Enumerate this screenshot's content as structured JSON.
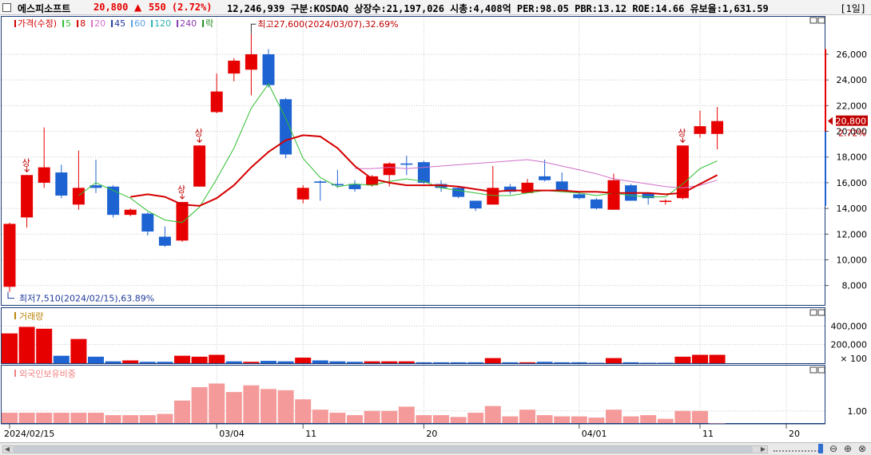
{
  "header": {
    "stock_name": "에스피소프트",
    "price": "20,800",
    "change_arrow": "▲",
    "change": "550 (2.72%)",
    "info": "12,246,939  구분:KOSDAQ  상장수:21,197,026  시총:4,408억  PER:98.05  PBR:13.12  ROE:14.66  유보율:1,631.59",
    "period": "[1일]"
  },
  "colors": {
    "up": "#e60000",
    "down": "#1e63d2",
    "ma5": "#2fbf2f",
    "ma20": "#d40000",
    "ma60": "#d070c8",
    "vol_up": "#e60000",
    "vol_down": "#1e63d2",
    "foreign": "#f59a9a"
  },
  "icons": [
    "restore-icon",
    "maximize-icon",
    "zoom-out-icon",
    "zoom-in-icon",
    "zoom-reset-icon"
  ],
  "price_panel": {
    "legend": [
      {
        "label": "가격(수정)",
        "color": "#d40000"
      },
      {
        "label": "5",
        "color": "#2fbf2f"
      },
      {
        "label": "8",
        "color": "#d40000"
      },
      {
        "label": "20",
        "color": "#d070c8"
      },
      {
        "label": "45",
        "color": "#1e3a9a"
      },
      {
        "label": "60",
        "color": "#5aa0e0"
      },
      {
        "label": "120",
        "color": "#2ab0b0"
      },
      {
        "label": "240",
        "color": "#8a3ab0"
      },
      {
        "label": "락",
        "color": "#228b22"
      }
    ],
    "high_note": "최고27,600(2024/03/07),32.69%",
    "low_note": "최저7,510(2024/02/15),63.89%",
    "limit_up_label": "상",
    "current_price_tag": "20,800",
    "current_pct_tag": "2.72%",
    "y_ticks": [
      "26,000",
      "24,000",
      "22,000",
      "20,000",
      "18,000",
      "16,000",
      "14,000",
      "12,000",
      "10,000",
      "8,000"
    ]
  },
  "volume_panel": {
    "title": "거래량",
    "y_ticks": [
      "400,000",
      "200,000",
      "× 100"
    ]
  },
  "foreign_panel": {
    "title": "외국인보유비중",
    "y_ticks": [
      "1.00"
    ]
  },
  "x_axis": {
    "labels": [
      "2024/02/15",
      "03/04",
      "11",
      "20",
      "04/01",
      "11",
      "20"
    ]
  },
  "chart_data": {
    "type": "candlestick",
    "dates_note": "daily candles from 2024/02/15",
    "candles": [
      {
        "o": 7900,
        "c": 12800,
        "h": 12900,
        "l": 7510
      },
      {
        "o": 13300,
        "c": 16600,
        "h": 16600,
        "l": 12500
      },
      {
        "o": 16000,
        "c": 17200,
        "h": 20300,
        "l": 15600
      },
      {
        "o": 16800,
        "c": 15000,
        "h": 17400,
        "l": 14800
      },
      {
        "o": 14300,
        "c": 15600,
        "h": 18500,
        "l": 13900
      },
      {
        "o": 15800,
        "c": 15600,
        "h": 17800,
        "l": 15200
      },
      {
        "o": 15700,
        "c": 13500,
        "h": 15800,
        "l": 13300
      },
      {
        "o": 13500,
        "c": 13900,
        "h": 14000,
        "l": 13400
      },
      {
        "o": 13600,
        "c": 12200,
        "h": 13700,
        "l": 11900
      },
      {
        "o": 11800,
        "c": 11100,
        "h": 12600,
        "l": 11000
      },
      {
        "o": 11500,
        "c": 14500,
        "h": 14500,
        "l": 11400
      },
      {
        "o": 15700,
        "c": 18900,
        "h": 18900,
        "l": 15700
      },
      {
        "o": 21500,
        "c": 23100,
        "h": 24500,
        "l": 21400
      },
      {
        "o": 24500,
        "c": 25500,
        "h": 25700,
        "l": 23900
      },
      {
        "o": 24800,
        "c": 26000,
        "h": 27600,
        "l": 22800
      },
      {
        "o": 26000,
        "c": 23600,
        "h": 26400,
        "l": 23400
      },
      {
        "o": 22500,
        "c": 18200,
        "h": 22600,
        "l": 17900
      },
      {
        "o": 14700,
        "c": 15600,
        "h": 15800,
        "l": 14400
      },
      {
        "o": 16100,
        "c": 16000,
        "h": 16200,
        "l": 14600
      },
      {
        "o": 15900,
        "c": 15800,
        "h": 17000,
        "l": 15600
      },
      {
        "o": 15900,
        "c": 15500,
        "h": 16200,
        "l": 15300
      },
      {
        "o": 15800,
        "c": 16500,
        "h": 16600,
        "l": 15700
      },
      {
        "o": 16600,
        "c": 17500,
        "h": 17600,
        "l": 15700
      },
      {
        "o": 17500,
        "c": 17400,
        "h": 18100,
        "l": 16600
      },
      {
        "o": 17600,
        "c": 16000,
        "h": 17700,
        "l": 15900
      },
      {
        "o": 15900,
        "c": 15600,
        "h": 16200,
        "l": 15300
      },
      {
        "o": 15600,
        "c": 14900,
        "h": 15700,
        "l": 14800
      },
      {
        "o": 14600,
        "c": 14000,
        "h": 14600,
        "l": 13800
      },
      {
        "o": 14300,
        "c": 15600,
        "h": 17300,
        "l": 14300
      },
      {
        "o": 15700,
        "c": 15300,
        "h": 15900,
        "l": 15100
      },
      {
        "o": 15200,
        "c": 16000,
        "h": 16300,
        "l": 15200
      },
      {
        "o": 16500,
        "c": 16200,
        "h": 17800,
        "l": 16100
      },
      {
        "o": 16100,
        "c": 15400,
        "h": 16800,
        "l": 15300
      },
      {
        "o": 15100,
        "c": 14800,
        "h": 15300,
        "l": 14700
      },
      {
        "o": 14700,
        "c": 14000,
        "h": 14800,
        "l": 13900
      },
      {
        "o": 13900,
        "c": 16200,
        "h": 16700,
        "l": 13900
      },
      {
        "o": 15800,
        "c": 14600,
        "h": 15900,
        "l": 14600
      },
      {
        "o": 15200,
        "c": 14800,
        "h": 15200,
        "l": 14300
      },
      {
        "o": 14600,
        "c": 14600,
        "h": 14700,
        "l": 14300
      },
      {
        "o": 14800,
        "c": 18900,
        "h": 18900,
        "l": 14700
      },
      {
        "o": 19800,
        "c": 20400,
        "h": 21600,
        "l": 19500
      },
      {
        "o": 19800,
        "c": 20800,
        "h": 21900,
        "l": 18600
      }
    ],
    "ma5": [
      null,
      null,
      null,
      null,
      15000,
      16000,
      15400,
      14800,
      13800,
      13100,
      12900,
      14100,
      16300,
      18700,
      21800,
      23700,
      21000,
      17900,
      16400,
      15700,
      15900,
      15800,
      16100,
      16300,
      16100,
      15600,
      15400,
      15200,
      15000,
      15000,
      15200,
      15400,
      15300,
      15200,
      15000,
      15200,
      15000,
      14900,
      14900,
      15900,
      17100,
      17700
    ],
    "ma8": [
      null,
      null,
      null,
      null,
      null,
      null,
      null,
      14900,
      15100,
      14900,
      14300,
      14200,
      14800,
      15800,
      17200,
      18400,
      19300,
      19700,
      19600,
      18700,
      17300,
      16300,
      16000,
      15800,
      15800,
      15800,
      15700,
      15500,
      15300,
      15400,
      15400,
      15400,
      15400,
      15300,
      15300,
      15200,
      15200,
      15200,
      15100,
      15200,
      15900,
      16600
    ],
    "ma20": [
      null,
      null,
      null,
      null,
      null,
      null,
      null,
      null,
      null,
      null,
      null,
      null,
      null,
      null,
      null,
      null,
      null,
      null,
      null,
      null,
      17100,
      17100,
      17200,
      17100,
      17200,
      17300,
      17400,
      17500,
      17600,
      17700,
      17800,
      17600,
      17300,
      17000,
      16700,
      16300,
      16100,
      15900,
      15700,
      15600,
      15800,
      16200
    ],
    "volume": [
      320000,
      390000,
      370000,
      80000,
      260000,
      70000,
      20000,
      30000,
      15000,
      15000,
      80000,
      70000,
      90000,
      20000,
      15000,
      25000,
      20000,
      60000,
      30000,
      20000,
      15000,
      20000,
      20000,
      20000,
      10000,
      10000,
      10000,
      10000,
      55000,
      10000,
      10000,
      15000,
      10000,
      10000,
      5000,
      55000,
      10000,
      5000,
      5000,
      70000,
      90000,
      90000
    ],
    "volume_up": [
      true,
      true,
      true,
      false,
      true,
      false,
      false,
      true,
      false,
      false,
      true,
      true,
      true,
      false,
      true,
      false,
      false,
      true,
      false,
      false,
      false,
      true,
      true,
      true,
      false,
      false,
      false,
      false,
      true,
      false,
      true,
      false,
      false,
      false,
      false,
      true,
      false,
      false,
      false,
      true,
      true,
      true
    ],
    "foreign_ratio": [
      0.85,
      0.85,
      0.85,
      0.85,
      0.85,
      0.85,
      0.65,
      0.65,
      0.65,
      0.75,
      1.85,
      2.95,
      3.25,
      2.55,
      3.1,
      2.8,
      2.7,
      1.95,
      1.1,
      0.85,
      0.65,
      1.0,
      1.0,
      1.35,
      0.65,
      0.65,
      0.5,
      0.85,
      1.4,
      0.55,
      1.1,
      0.65,
      0.55,
      0.55,
      0.45,
      1.1,
      0.55,
      0.65,
      0.35,
      1.0,
      1.0,
      0.0
    ],
    "price_ylim": [
      6800,
      27800
    ],
    "volume_ylim": [
      0,
      480000
    ],
    "foreign_ylim": [
      0,
      4.0
    ]
  }
}
